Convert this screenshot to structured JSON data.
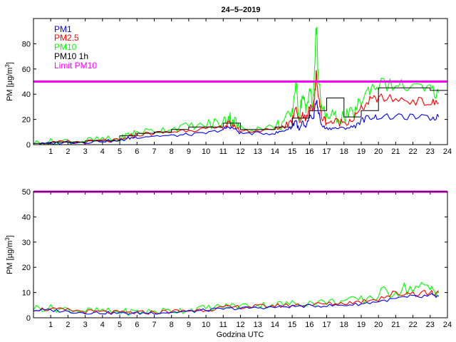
{
  "title": "24–5–2019",
  "chart_data": [
    {
      "type": "line",
      "title": "24–5–2019",
      "xlabel": "",
      "ylabel": "PM [µg/m³]",
      "ylabel_parts": {
        "main": "PM [µg/m",
        "sup": "3",
        "end": "]"
      },
      "xlim": [
        0,
        24
      ],
      "ylim": [
        0,
        100
      ],
      "xticks": [
        1,
        2,
        3,
        4,
        5,
        6,
        7,
        8,
        9,
        10,
        11,
        12,
        13,
        14,
        15,
        16,
        17,
        18,
        19,
        20,
        21,
        22,
        23,
        24
      ],
      "yticks": [
        0,
        20,
        40,
        60,
        80
      ],
      "limit": {
        "name": "Limit PM10",
        "value": 50,
        "color": "#ff00ff"
      },
      "legend": {
        "position": "top-left",
        "entries": [
          {
            "label": "PM1",
            "color": "#0000ff"
          },
          {
            "label": "PM2.5",
            "color": "#ff0000"
          },
          {
            "label": "PM10",
            "color": "#00ff00"
          },
          {
            "label": "PM10 1h",
            "color": "#000000"
          },
          {
            "label": "Limit PM10",
            "color": "#ff00ff"
          }
        ]
      },
      "series": [
        {
          "name": "PM1",
          "color": "#0000ff",
          "x": [
            0,
            1,
            2,
            3,
            4,
            5,
            5.5,
            6,
            7,
            8,
            9,
            10,
            11,
            11.3,
            11.6,
            12,
            13,
            14,
            14.5,
            15,
            15.2,
            15.4,
            15.6,
            15.8,
            16,
            16.2,
            16.3,
            16.4,
            16.5,
            16.7,
            17,
            17.5,
            18,
            18.5,
            19,
            19.5,
            20,
            21,
            22,
            23,
            23.5
          ],
          "y": [
            0,
            1,
            2,
            2,
            3,
            3,
            5,
            6,
            7,
            7,
            8,
            9,
            12,
            14,
            13,
            9,
            9,
            9,
            11,
            14,
            20,
            11,
            17,
            13,
            23,
            18,
            29,
            35,
            28,
            15,
            13,
            13,
            13,
            14,
            19,
            22,
            22,
            22,
            22,
            21,
            22
          ]
        },
        {
          "name": "PM2.5",
          "color": "#ff0000",
          "x": [
            0,
            1,
            2,
            3,
            4,
            5,
            5.5,
            6,
            7,
            8,
            9,
            10,
            11,
            11.3,
            11.6,
            12,
            13,
            14,
            14.5,
            15,
            15.2,
            15.4,
            15.6,
            15.8,
            16,
            16.2,
            16.3,
            16.4,
            16.5,
            16.7,
            17,
            17.5,
            18,
            18.5,
            19,
            19.5,
            20,
            21,
            22,
            23,
            23.5
          ],
          "y": [
            0,
            1,
            2,
            2,
            3,
            3,
            6,
            8,
            9,
            10,
            12,
            12,
            14,
            16,
            15,
            11,
            11,
            12,
            15,
            19,
            32,
            17,
            25,
            20,
            31,
            25,
            39,
            58,
            40,
            22,
            18,
            18,
            18,
            20,
            28,
            35,
            37,
            36,
            35,
            33,
            33
          ]
        },
        {
          "name": "PM10",
          "color": "#00ff00",
          "x": [
            0,
            1,
            2,
            3,
            4,
            5,
            5.5,
            6,
            7,
            8,
            9,
            10,
            11,
            11.3,
            11.6,
            12,
            13,
            14,
            14.5,
            15,
            15.2,
            15.4,
            15.6,
            15.8,
            16,
            16.2,
            16.3,
            16.4,
            16.5,
            16.7,
            17,
            17.5,
            18,
            18.5,
            19,
            19.5,
            20,
            21,
            22,
            23,
            23.5
          ],
          "y": [
            1,
            2,
            3,
            3,
            4,
            4,
            8,
            10,
            11,
            13,
            15,
            15,
            18,
            22,
            19,
            13,
            13,
            14,
            18,
            24,
            50,
            22,
            40,
            26,
            45,
            30,
            62,
            98,
            55,
            28,
            22,
            22,
            22,
            24,
            35,
            45,
            48,
            47,
            45,
            43,
            41
          ]
        },
        {
          "name": "PM10 1h",
          "color": "#000000",
          "step": true,
          "x": [
            0,
            1,
            2,
            3,
            4,
            5,
            6,
            7,
            8,
            9,
            10,
            11,
            12,
            13,
            14,
            15,
            16,
            17,
            18,
            19,
            20,
            21,
            22,
            23,
            24
          ],
          "y": [
            1,
            2,
            2,
            3,
            3,
            7,
            9,
            10,
            12,
            14,
            14,
            17,
            12,
            12,
            14,
            21,
            27,
            37,
            22,
            27,
            45,
            45,
            45,
            43,
            43
          ]
        }
      ]
    },
    {
      "type": "line",
      "title": "",
      "xlabel": "Godzina UTC",
      "ylabel": "PM [µg/m³]",
      "ylabel_parts": {
        "main": "PM [µg/m",
        "sup": "3",
        "end": "]"
      },
      "xlim": [
        0,
        24
      ],
      "ylim": [
        0,
        50
      ],
      "xticks": [
        1,
        2,
        3,
        4,
        5,
        6,
        7,
        8,
        9,
        10,
        11,
        12,
        13,
        14,
        15,
        16,
        17,
        18,
        19,
        20,
        21,
        22,
        23,
        24
      ],
      "yticks": [
        0,
        10,
        20,
        30,
        40,
        50
      ],
      "limit": {
        "name": "Limit PM10",
        "value": 50,
        "color": "#ff00ff"
      },
      "series": [
        {
          "name": "PM1",
          "color": "#0000ff",
          "x": [
            0,
            1,
            2,
            3,
            4,
            5,
            6,
            7,
            8,
            9,
            10,
            11,
            12,
            13,
            14,
            15,
            16,
            17,
            18,
            19,
            20,
            21,
            22,
            23,
            23.5
          ],
          "y": [
            3,
            3,
            2.5,
            2,
            2,
            1.8,
            1.8,
            2,
            2.2,
            2.5,
            3,
            3.5,
            3.8,
            4,
            4.2,
            4.5,
            4.7,
            4.8,
            5,
            5.5,
            6.5,
            7.5,
            8,
            8.5,
            8.5
          ]
        },
        {
          "name": "PM2.5",
          "color": "#ff0000",
          "x": [
            0,
            1,
            2,
            3,
            4,
            5,
            6,
            7,
            8,
            9,
            10,
            11,
            12,
            13,
            14,
            15,
            16,
            17,
            18,
            19,
            20,
            21,
            22,
            23,
            23.5
          ],
          "y": [
            3.5,
            3.3,
            3,
            2.5,
            2.3,
            2,
            2,
            2.2,
            2.5,
            2.8,
            3.3,
            4,
            4.3,
            4.5,
            4.8,
            5,
            5.3,
            5.5,
            5.8,
            6.5,
            8,
            9.5,
            10,
            10,
            10
          ]
        },
        {
          "name": "PM10",
          "color": "#00ff00",
          "x": [
            0,
            1,
            2,
            3,
            4,
            5,
            6,
            7,
            8,
            9,
            10,
            11,
            12,
            13,
            14,
            15,
            16,
            17,
            18,
            19,
            20,
            21,
            22,
            23,
            23.5
          ],
          "y": [
            4,
            3.8,
            3.3,
            2.8,
            2.6,
            2.3,
            2.3,
            2.5,
            2.8,
            3.2,
            3.8,
            4.5,
            4.8,
            5,
            5.3,
            5.6,
            6,
            6.3,
            6.6,
            7.5,
            9,
            11,
            12,
            11.5,
            11
          ]
        }
      ]
    }
  ]
}
